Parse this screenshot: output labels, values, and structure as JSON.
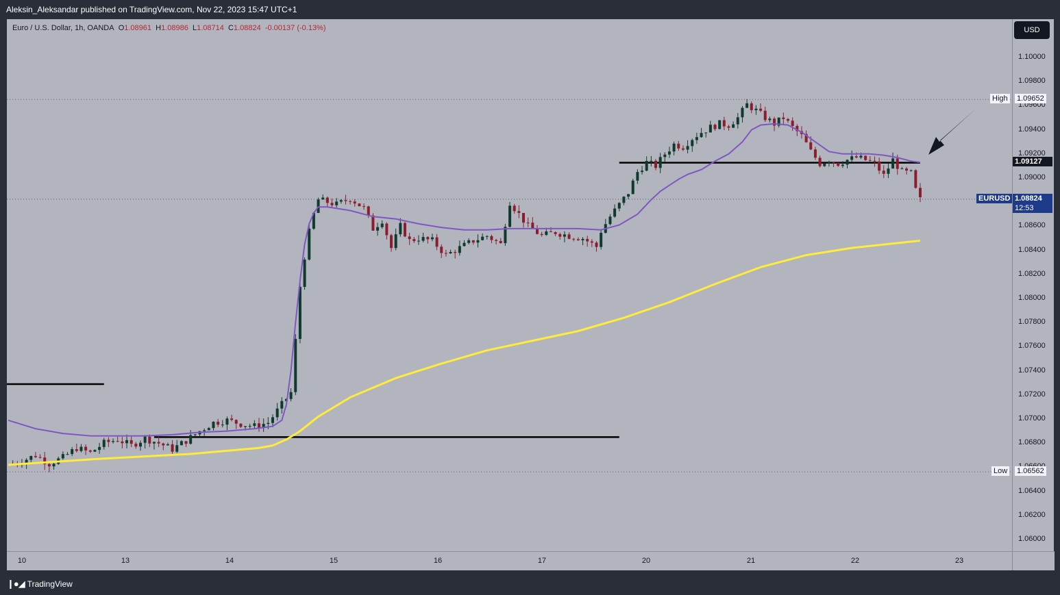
{
  "publisher": "Aleksin_Aleksandar published on TradingView.com, Nov 22, 2023 15:47 UTC+1",
  "brand": "TradingView",
  "legend": {
    "symbol": "Euro / U.S. Dollar, 1h, OANDA",
    "o_label": "O",
    "o": "1.08961",
    "h_label": "H",
    "h": "1.08986",
    "l_label": "L",
    "l": "1.08714",
    "c_label": "C",
    "c": "1.08824",
    "change": "-0.00137 (-0.13%)"
  },
  "currency_button": "USD",
  "tags": {
    "high_label": "High",
    "high_value": "1.09652",
    "low_label": "Low",
    "low_value": "1.06562",
    "level_value": "1.09127",
    "symbol_label": "EURUSD",
    "last_value": "1.08824",
    "countdown": "12:53"
  },
  "colors": {
    "background": "#b2b5be",
    "frame": "#2a2e39",
    "up_candle": "#0f3b2e",
    "down_candle": "#8b1d2c",
    "ema_short": "#7e57c2",
    "ema_long": "#ffeb3b",
    "level_lines": "#000000"
  },
  "chart_data": {
    "type": "candlestick",
    "symbol": "EURUSD",
    "timeframe": "1h",
    "y_ticks": [
      "1.10000",
      "1.09800",
      "1.09600",
      "1.09400",
      "1.09200",
      "1.09000",
      "1.08800",
      "1.08600",
      "1.08400",
      "1.08200",
      "1.08000",
      "1.07800",
      "1.07600",
      "1.07400",
      "1.07200",
      "1.07000",
      "1.06800",
      "1.06600",
      "1.06400",
      "1.06200",
      "1.06000"
    ],
    "ylim": [
      1.0595,
      1.1022
    ],
    "x_ticks": [
      "10",
      "13",
      "14",
      "15",
      "16",
      "17",
      "20",
      "21",
      "22",
      "23"
    ],
    "price_path": [
      [
        0,
        1.0662
      ],
      [
        3,
        1.0665
      ],
      [
        6,
        1.067
      ],
      [
        9,
        1.0663
      ],
      [
        12,
        1.0668
      ],
      [
        15,
        1.0676
      ],
      [
        18,
        1.0672
      ],
      [
        21,
        1.068
      ],
      [
        24,
        1.0683
      ],
      [
        27,
        1.0678
      ],
      [
        30,
        1.0684
      ],
      [
        33,
        1.068
      ],
      [
        36,
        1.0675
      ],
      [
        39,
        1.0682
      ],
      [
        42,
        1.069
      ],
      [
        45,
        1.0697
      ],
      [
        48,
        1.0699
      ],
      [
        51,
        1.0696
      ],
      [
        54,
        1.0694
      ],
      [
        57,
        1.0697
      ],
      [
        60,
        1.0712
      ],
      [
        62,
        1.0722
      ],
      [
        63,
        1.0765
      ],
      [
        64,
        1.081
      ],
      [
        65,
        1.0835
      ],
      [
        66,
        1.0855
      ],
      [
        67,
        1.087
      ],
      [
        68,
        1.0882
      ],
      [
        70,
        1.088
      ],
      [
        72,
        1.0878
      ],
      [
        75,
        1.0883
      ],
      [
        78,
        1.0875
      ],
      [
        80,
        1.0858
      ],
      [
        82,
        1.0865
      ],
      [
        84,
        1.0842
      ],
      [
        86,
        1.086
      ],
      [
        88,
        1.0848
      ],
      [
        90,
        1.085
      ],
      [
        93,
        1.0848
      ],
      [
        96,
        1.0836
      ],
      [
        99,
        1.0842
      ],
      [
        102,
        1.0848
      ],
      [
        105,
        1.0852
      ],
      [
        108,
        1.0845
      ],
      [
        110,
        1.088
      ],
      [
        112,
        1.087
      ],
      [
        114,
        1.086
      ],
      [
        117,
        1.0852
      ],
      [
        120,
        1.0855
      ],
      [
        123,
        1.0852
      ],
      [
        126,
        1.085
      ],
      [
        129,
        1.0843
      ],
      [
        130,
        1.0856
      ],
      [
        132,
        1.0868
      ],
      [
        134,
        1.0878
      ],
      [
        136,
        1.0888
      ],
      [
        138,
        1.0905
      ],
      [
        140,
        1.0913
      ],
      [
        142,
        1.091
      ],
      [
        144,
        1.092
      ],
      [
        146,
        1.0928
      ],
      [
        148,
        1.0926
      ],
      [
        150,
        1.0933
      ],
      [
        152,
        1.0938
      ],
      [
        154,
        1.0942
      ],
      [
        156,
        1.0945
      ],
      [
        158,
        1.0944
      ],
      [
        160,
        1.095
      ],
      [
        162,
        1.0961
      ],
      [
        164,
        1.0956
      ],
      [
        166,
        1.095
      ],
      [
        168,
        1.0945
      ],
      [
        170,
        1.095
      ],
      [
        172,
        1.0942
      ],
      [
        174,
        1.0935
      ],
      [
        176,
        1.0922
      ],
      [
        178,
        1.0912
      ],
      [
        180,
        1.0915
      ],
      [
        182,
        1.0912
      ],
      [
        184,
        1.0915
      ],
      [
        186,
        1.0917
      ],
      [
        188,
        1.0915
      ],
      [
        190,
        1.0912
      ],
      [
        192,
        1.0902
      ],
      [
        194,
        1.0915
      ],
      [
        196,
        1.0905
      ],
      [
        198,
        1.0904
      ],
      [
        199,
        1.089
      ],
      [
        200,
        1.0882
      ]
    ],
    "ema_short": [
      [
        0,
        1.0699
      ],
      [
        6,
        1.0692
      ],
      [
        12,
        1.0688
      ],
      [
        18,
        1.0686
      ],
      [
        24,
        1.0686
      ],
      [
        30,
        1.0686
      ],
      [
        36,
        1.0687
      ],
      [
        42,
        1.0689
      ],
      [
        48,
        1.069
      ],
      [
        54,
        1.0692
      ],
      [
        58,
        1.0694
      ],
      [
        60,
        1.0699
      ],
      [
        61,
        1.0712
      ],
      [
        62,
        1.074
      ],
      [
        63,
        1.078
      ],
      [
        64,
        1.0815
      ],
      [
        65,
        1.0845
      ],
      [
        66,
        1.0862
      ],
      [
        67,
        1.0871
      ],
      [
        68,
        1.0876
      ],
      [
        70,
        1.0876
      ],
      [
        75,
        1.0873
      ],
      [
        80,
        1.0868
      ],
      [
        85,
        1.0866
      ],
      [
        90,
        1.0862
      ],
      [
        95,
        1.0859
      ],
      [
        100,
        1.0857
      ],
      [
        105,
        1.0857
      ],
      [
        110,
        1.0858
      ],
      [
        115,
        1.0858
      ],
      [
        120,
        1.0858
      ],
      [
        125,
        1.0858
      ],
      [
        130,
        1.0857
      ],
      [
        134,
        1.0861
      ],
      [
        138,
        1.087
      ],
      [
        141,
        1.0882
      ],
      [
        143,
        1.0889
      ],
      [
        145,
        1.0894
      ],
      [
        147,
        1.0899
      ],
      [
        149,
        1.0903
      ],
      [
        152,
        1.0907
      ],
      [
        155,
        1.0914
      ],
      [
        158,
        1.092
      ],
      [
        161,
        1.093
      ],
      [
        163,
        1.094
      ],
      [
        165,
        1.0944
      ],
      [
        168,
        1.0945
      ],
      [
        171,
        1.0944
      ],
      [
        174,
        1.0938
      ],
      [
        177,
        1.093
      ],
      [
        180,
        1.0922
      ],
      [
        183,
        1.092
      ],
      [
        186,
        1.092
      ],
      [
        189,
        1.092
      ],
      [
        192,
        1.0919
      ],
      [
        195,
        1.0917
      ],
      [
        198,
        1.0914
      ],
      [
        200,
        1.0913
      ]
    ],
    "ema_long": [
      [
        0,
        1.0662
      ],
      [
        20,
        1.0667
      ],
      [
        40,
        1.0671
      ],
      [
        55,
        1.0676
      ],
      [
        58,
        1.0678
      ],
      [
        61,
        1.0683
      ],
      [
        64,
        1.069
      ],
      [
        68,
        1.0702
      ],
      [
        75,
        1.0718
      ],
      [
        85,
        1.0734
      ],
      [
        95,
        1.0746
      ],
      [
        105,
        1.0757
      ],
      [
        115,
        1.0765
      ],
      [
        125,
        1.0773
      ],
      [
        135,
        1.0784
      ],
      [
        145,
        1.0797
      ],
      [
        155,
        1.0812
      ],
      [
        165,
        1.0826
      ],
      [
        175,
        1.0836
      ],
      [
        185,
        1.0842
      ],
      [
        195,
        1.0846
      ],
      [
        200,
        1.0848
      ]
    ],
    "levels": [
      {
        "price": 1.0729,
        "from": -2,
        "to": 21
      },
      {
        "price": 1.0685,
        "from": 32,
        "to": 134
      },
      {
        "price": 1.09127,
        "from": 134,
        "to": 200
      }
    ],
    "high": 1.09652,
    "low": 1.06562,
    "last": 1.08824
  }
}
